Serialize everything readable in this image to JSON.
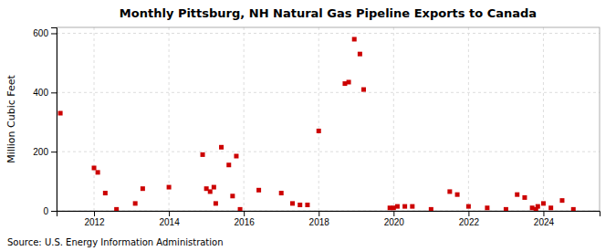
{
  "chart_data": {
    "type": "scatter",
    "title": "Monthly Pittsburg, NH Natural Gas Pipeline Exports to Canada",
    "ylabel": "Million Cubic Feet",
    "annotation": "Source: U.S. Energy Information Administration",
    "color": "#cc0000",
    "marker": "square",
    "grid": true,
    "xlim": [
      2011.0,
      2025.5
    ],
    "ylim": [
      0,
      620
    ],
    "xticks": [
      2012,
      2014,
      2016,
      2018,
      2020,
      2022,
      2024
    ],
    "yticks": [
      0,
      200,
      400,
      600
    ],
    "x": [
      2011.1,
      2012.0,
      2012.1,
      2012.3,
      2012.6,
      2013.1,
      2013.3,
      2014.0,
      2014.9,
      2015.0,
      2015.1,
      2015.2,
      2015.25,
      2015.4,
      2015.6,
      2015.7,
      2015.8,
      2015.9,
      2016.4,
      2017.0,
      2017.3,
      2017.5,
      2017.7,
      2018.0,
      2018.7,
      2018.8,
      2018.95,
      2019.1,
      2019.2,
      2019.9,
      2020.0,
      2020.1,
      2020.3,
      2020.5,
      2021.0,
      2021.5,
      2021.7,
      2022.0,
      2022.5,
      2023.0,
      2023.3,
      2023.5,
      2023.7,
      2023.8,
      2023.85,
      2024.0,
      2024.2,
      2024.5,
      2024.8
    ],
    "values": [
      330,
      145,
      130,
      60,
      5,
      25,
      75,
      80,
      190,
      75,
      65,
      80,
      25,
      215,
      155,
      50,
      185,
      5,
      70,
      60,
      25,
      20,
      20,
      270,
      430,
      435,
      580,
      530,
      410,
      10,
      10,
      15,
      15,
      15,
      5,
      65,
      55,
      15,
      10,
      5,
      55,
      45,
      10,
      5,
      15,
      25,
      10,
      35,
      5
    ]
  }
}
